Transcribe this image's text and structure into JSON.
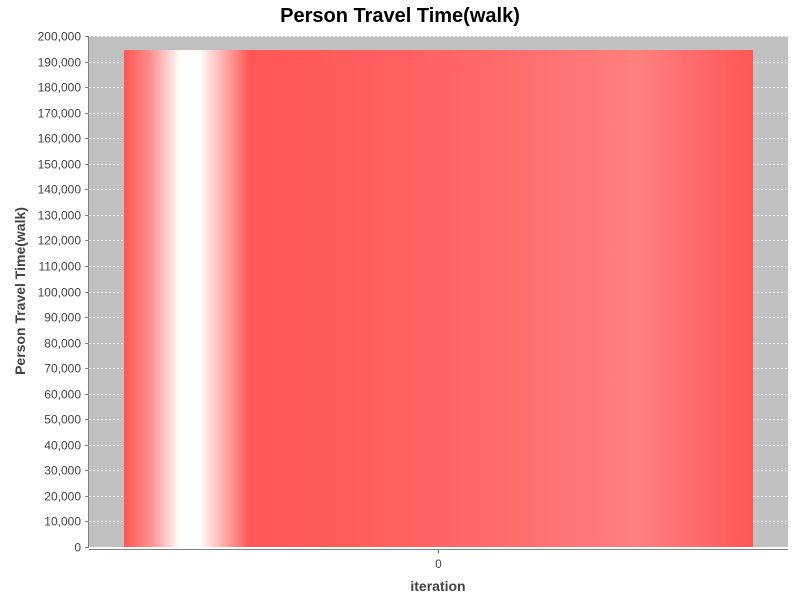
{
  "chart_data": {
    "type": "bar",
    "title": "Person Travel Time(walk)",
    "xlabel": "iteration",
    "ylabel": "Person Travel Time(walk)",
    "categories": [
      "0"
    ],
    "series": [
      {
        "values": [
          194500
        ]
      }
    ],
    "ylim": [
      0,
      200000
    ],
    "yticks": [
      0,
      10000,
      20000,
      30000,
      40000,
      50000,
      60000,
      70000,
      80000,
      90000,
      100000,
      110000,
      120000,
      130000,
      140000,
      150000,
      160000,
      170000,
      180000,
      190000,
      200000
    ],
    "ytick_labels": [
      "0",
      "10,000",
      "20,000",
      "30,000",
      "40,000",
      "50,000",
      "60,000",
      "70,000",
      "80,000",
      "90,000",
      "100,000",
      "110,000",
      "120,000",
      "130,000",
      "140,000",
      "150,000",
      "160,000",
      "170,000",
      "180,000",
      "190,000",
      "200,000"
    ],
    "grid": true,
    "legend": "none",
    "colors": {
      "plot_background": "#c0c0c0",
      "bar": "#ff5555",
      "bar_highlight": "#ffffff",
      "gridline": "#ffffff",
      "text": "#444444",
      "title": "#000000"
    }
  }
}
